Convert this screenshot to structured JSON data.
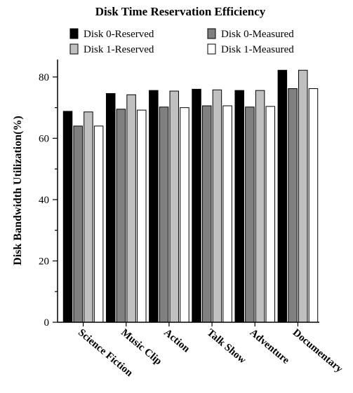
{
  "chart_data": {
    "type": "bar",
    "title": "Disk Time Reservation Efficiency",
    "xlabel": "",
    "ylabel": "Disk Bandwidth Utilization(%)",
    "ylim": [
      0,
      85
    ],
    "yticks": [
      0,
      20,
      40,
      60,
      80
    ],
    "categories": [
      "Science Fiction",
      "Music Clip",
      "Action",
      "Talk Show",
      "Adventure",
      "Documentary"
    ],
    "series": [
      {
        "name": "Disk 0-Reserved",
        "color": "#000000",
        "values": [
          68.8,
          74.6,
          75.6,
          76.0,
          75.6,
          82.2
        ]
      },
      {
        "name": "Disk 0-Measured",
        "color": "#808080",
        "values": [
          64.0,
          69.5,
          70.2,
          70.6,
          70.2,
          76.2
        ]
      },
      {
        "name": "Disk 1-Reserved",
        "color": "#c0c0c0",
        "values": [
          68.6,
          74.2,
          75.4,
          75.8,
          75.6,
          82.2
        ]
      },
      {
        "name": "Disk 1-Measured",
        "color": "#ffffff",
        "values": [
          64.0,
          69.2,
          70.0,
          70.6,
          70.4,
          76.2
        ]
      }
    ],
    "grid": false,
    "legend_position": "top"
  }
}
